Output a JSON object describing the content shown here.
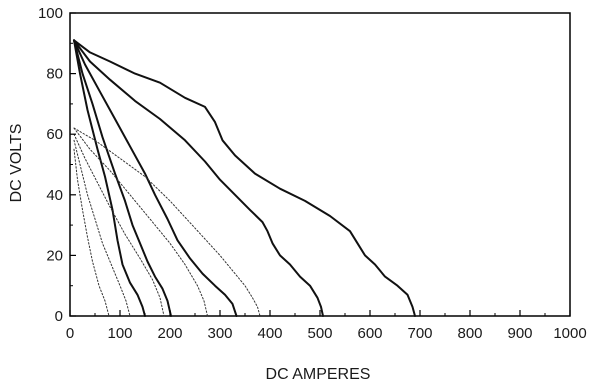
{
  "chart_data": {
    "type": "line",
    "title": "",
    "xlabel": "DC AMPERES",
    "ylabel": "DC VOLTS",
    "xlim": [
      0,
      1000
    ],
    "ylim": [
      0,
      100
    ],
    "xticks": [
      "0",
      "100",
      "200",
      "300",
      "400",
      "500",
      "600",
      "700",
      "800",
      "900",
      "1000"
    ],
    "yticks": [
      "0",
      "20",
      "40",
      "60",
      "80",
      "100"
    ],
    "grid": false,
    "legend": "none",
    "colors": {
      "solid": "#111111",
      "dotted": "#333333",
      "axis": "#000000"
    },
    "series": [
      {
        "style": "solid",
        "points": [
          [
            8,
            91
          ],
          [
            40,
            87
          ],
          [
            80,
            84
          ],
          [
            130,
            80
          ],
          [
            180,
            77
          ],
          [
            230,
            72
          ],
          [
            270,
            69
          ],
          [
            290,
            64
          ],
          [
            305,
            58
          ],
          [
            330,
            53
          ],
          [
            370,
            47
          ],
          [
            420,
            42
          ],
          [
            470,
            38
          ],
          [
            520,
            33
          ],
          [
            560,
            28
          ],
          [
            575,
            24
          ],
          [
            590,
            20
          ],
          [
            610,
            17
          ],
          [
            630,
            13
          ],
          [
            655,
            10
          ],
          [
            675,
            7
          ],
          [
            685,
            3
          ],
          [
            690,
            0
          ]
        ]
      },
      {
        "style": "solid",
        "points": [
          [
            8,
            91
          ],
          [
            40,
            84
          ],
          [
            80,
            78
          ],
          [
            130,
            71
          ],
          [
            180,
            65
          ],
          [
            230,
            58
          ],
          [
            270,
            51
          ],
          [
            300,
            45
          ],
          [
            330,
            40
          ],
          [
            360,
            35
          ],
          [
            385,
            31
          ],
          [
            395,
            28
          ],
          [
            405,
            24
          ],
          [
            420,
            20
          ],
          [
            440,
            17
          ],
          [
            460,
            13
          ],
          [
            480,
            10
          ],
          [
            495,
            6
          ],
          [
            502,
            3
          ],
          [
            506,
            0
          ]
        ]
      },
      {
        "style": "solid",
        "points": [
          [
            8,
            91
          ],
          [
            30,
            83
          ],
          [
            60,
            74
          ],
          [
            90,
            65
          ],
          [
            120,
            56
          ],
          [
            150,
            47
          ],
          [
            170,
            40
          ],
          [
            195,
            32
          ],
          [
            215,
            25
          ],
          [
            240,
            19
          ],
          [
            265,
            14
          ],
          [
            290,
            10
          ],
          [
            310,
            7
          ],
          [
            325,
            4
          ],
          [
            333,
            0
          ]
        ]
      },
      {
        "style": "solid",
        "points": [
          [
            8,
            91
          ],
          [
            25,
            80
          ],
          [
            45,
            70
          ],
          [
            65,
            59
          ],
          [
            90,
            47
          ],
          [
            110,
            38
          ],
          [
            125,
            30
          ],
          [
            140,
            24
          ],
          [
            155,
            18
          ],
          [
            170,
            13
          ],
          [
            185,
            9
          ],
          [
            195,
            5
          ],
          [
            202,
            0
          ]
        ]
      },
      {
        "style": "solid",
        "points": [
          [
            8,
            91
          ],
          [
            20,
            80
          ],
          [
            35,
            68
          ],
          [
            55,
            55
          ],
          [
            70,
            46
          ],
          [
            85,
            35
          ],
          [
            95,
            25
          ],
          [
            105,
            17
          ],
          [
            120,
            11
          ],
          [
            135,
            7
          ],
          [
            145,
            3
          ],
          [
            150,
            0
          ]
        ]
      },
      {
        "style": "dotted",
        "points": [
          [
            8,
            62
          ],
          [
            50,
            58
          ],
          [
            100,
            52
          ],
          [
            150,
            46
          ],
          [
            200,
            38
          ],
          [
            250,
            29
          ],
          [
            300,
            20
          ],
          [
            330,
            14
          ],
          [
            350,
            10
          ],
          [
            365,
            6
          ],
          [
            375,
            3
          ],
          [
            380,
            0
          ]
        ]
      },
      {
        "style": "dotted",
        "points": [
          [
            8,
            62
          ],
          [
            40,
            55
          ],
          [
            80,
            48
          ],
          [
            120,
            40
          ],
          [
            160,
            32
          ],
          [
            200,
            24
          ],
          [
            230,
            17
          ],
          [
            255,
            10
          ],
          [
            268,
            5
          ],
          [
            275,
            0
          ]
        ]
      },
      {
        "style": "dotted",
        "points": [
          [
            8,
            60
          ],
          [
            30,
            52
          ],
          [
            55,
            44
          ],
          [
            80,
            36
          ],
          [
            110,
            27
          ],
          [
            140,
            19
          ],
          [
            165,
            12
          ],
          [
            180,
            6
          ],
          [
            188,
            0
          ]
        ]
      },
      {
        "style": "dotted",
        "points": [
          [
            8,
            58
          ],
          [
            20,
            50
          ],
          [
            35,
            40
          ],
          [
            50,
            32
          ],
          [
            65,
            24
          ],
          [
            85,
            16
          ],
          [
            100,
            10
          ],
          [
            112,
            5
          ],
          [
            120,
            0
          ]
        ]
      },
      {
        "style": "dotted",
        "points": [
          [
            8,
            55
          ],
          [
            15,
            45
          ],
          [
            25,
            35
          ],
          [
            35,
            26
          ],
          [
            45,
            18
          ],
          [
            58,
            10
          ],
          [
            70,
            5
          ],
          [
            78,
            0
          ]
        ]
      }
    ]
  }
}
